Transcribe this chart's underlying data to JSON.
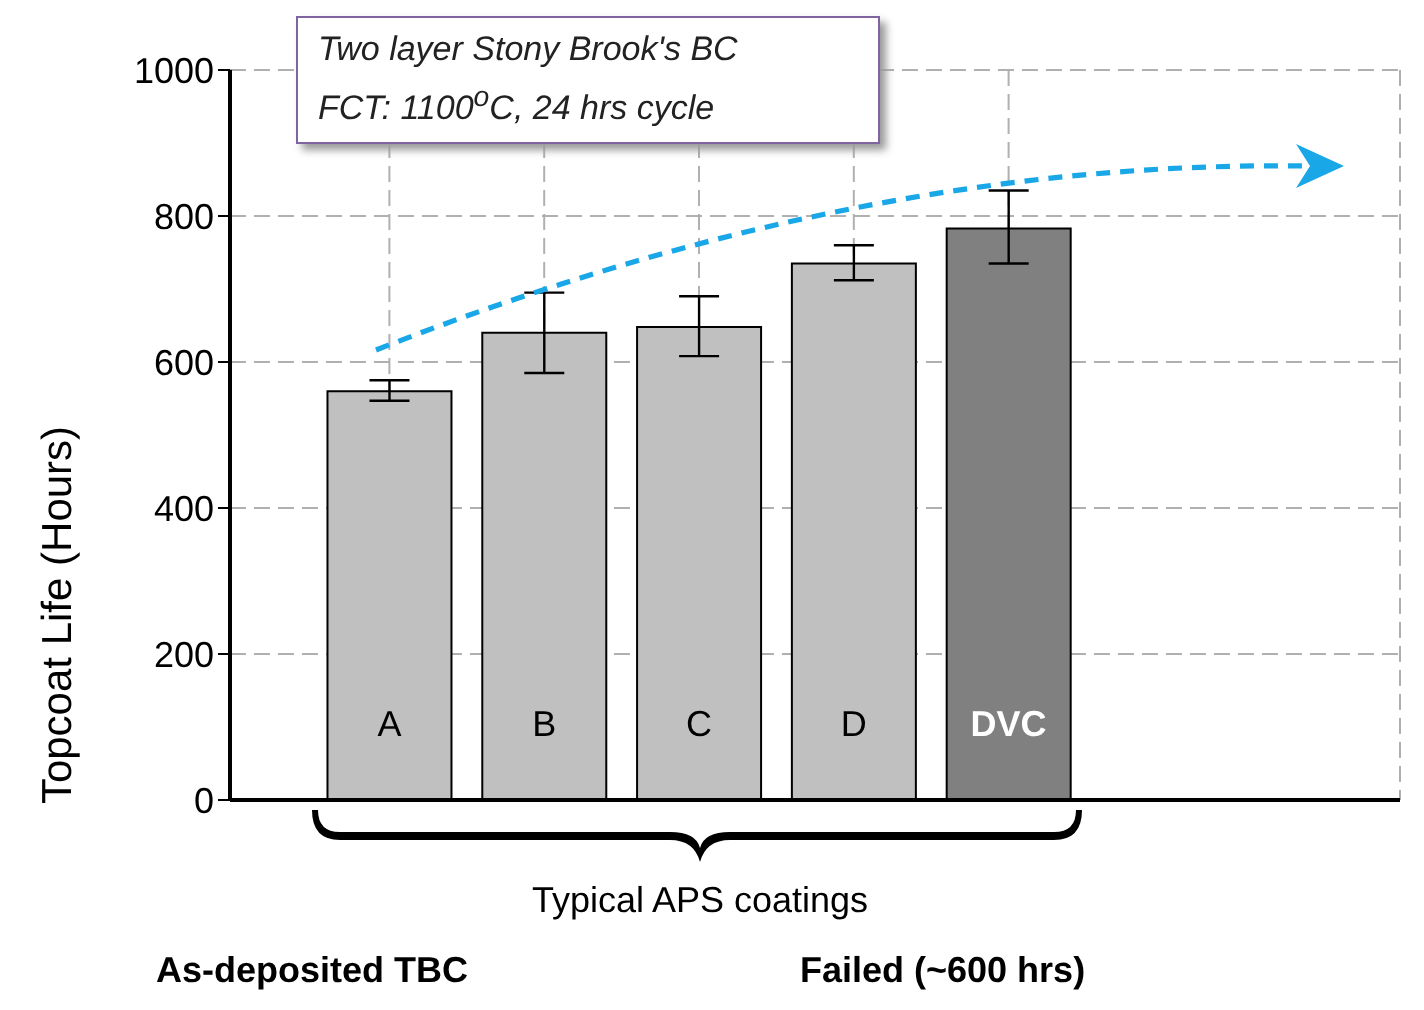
{
  "chart_data": {
    "type": "bar",
    "ylabel": "Topcoat Life (Hours)",
    "categories": [
      "A",
      "B",
      "C",
      "D",
      "DVC"
    ],
    "values": [
      560,
      640,
      648,
      735,
      783
    ],
    "errors": [
      [
        547,
        575
      ],
      [
        585,
        695
      ],
      [
        608,
        690
      ],
      [
        712,
        760
      ],
      [
        735,
        835
      ]
    ],
    "colors": [
      "#c0c0c0",
      "#c0c0c0",
      "#c0c0c0",
      "#c0c0c0",
      "#808080"
    ],
    "ylim": [
      0,
      1000
    ],
    "yticks": [
      0,
      200,
      400,
      600,
      800,
      1000
    ],
    "grid": true,
    "annotations": [
      "Two layer Stony Brook's BC",
      "FCT: 1100$^{o}$C, 24 hrs cycle",
      "Typical APS coatings",
      "As-deposited TBC",
      "Failed (~600 hrs)"
    ]
  }
}
